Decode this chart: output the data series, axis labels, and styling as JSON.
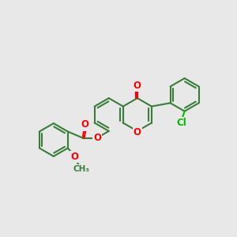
{
  "bg_color": "#e8e8e8",
  "bond_color": "#3a7d3a",
  "o_color": "#ff0000",
  "cl_color": "#00bb00",
  "line_width": 1.5,
  "dbo": 0.07,
  "font_size": 8.5,
  "fig_size": [
    3.0,
    3.0
  ],
  "dpi": 100,
  "xlim": [
    0,
    12
  ],
  "ylim": [
    0,
    10
  ]
}
